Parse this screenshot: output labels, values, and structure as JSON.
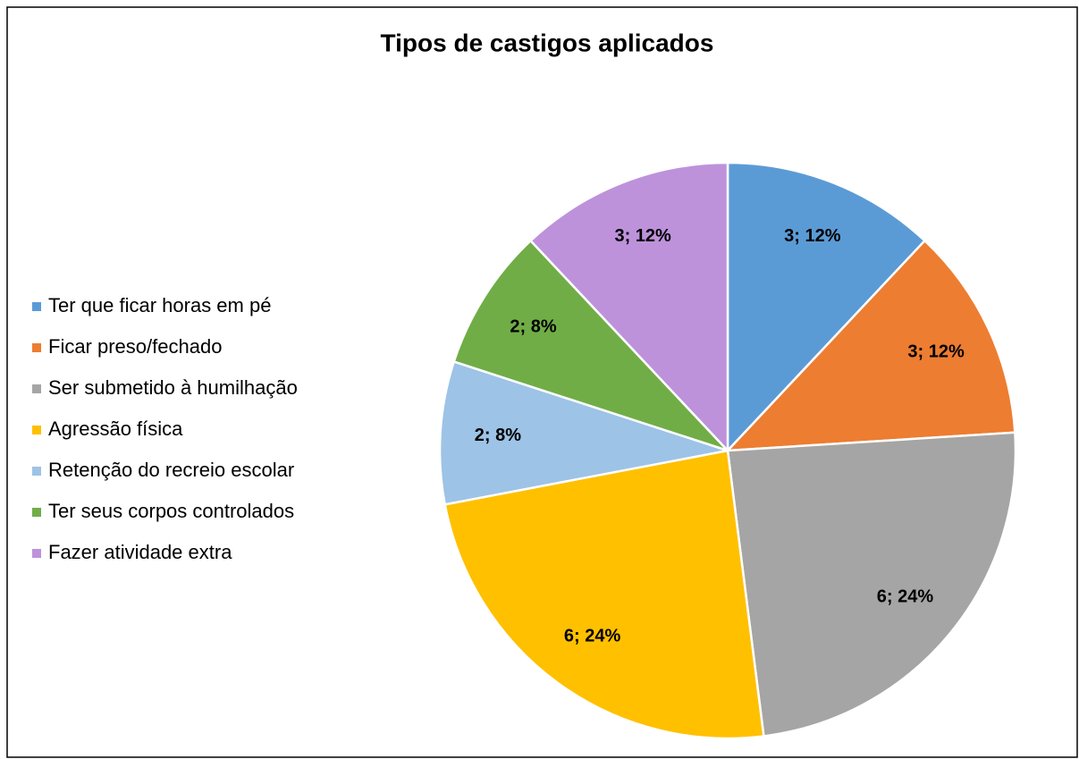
{
  "chart_data": {
    "type": "pie",
    "title": "Tipos de castigos aplicados",
    "categories": [
      "Ter que ficar horas em pé",
      "Ficar preso/fechado",
      "Ser submetido à humilhação",
      "Agressão física",
      "Retenção do recreio escolar",
      "Ter seus corpos controlados",
      "Fazer atividade extra"
    ],
    "values": [
      3,
      3,
      6,
      6,
      2,
      2,
      3
    ],
    "value_labels": [
      "3; 12%",
      "3; 12%",
      "6; 24%",
      "6; 24%",
      "2; 8%",
      "2; 8%",
      "3; 12%"
    ],
    "colors": [
      "#5b9bd5",
      "#ed7d31",
      "#a5a5a5",
      "#ffc000",
      "#9dc3e6",
      "#70ad47",
      "#bd92db"
    ],
    "legend": "left"
  }
}
